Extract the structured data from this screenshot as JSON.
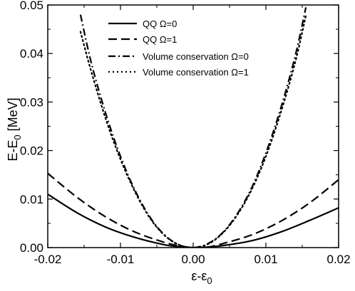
{
  "chart_data": {
    "type": "line",
    "xlabel": "ε-ε",
    "xlabel_sub": "0",
    "ylabel": "E-E",
    "ylabel_sub": "0",
    "ylabel_unit": " [MeV]",
    "xlim": [
      -0.02,
      0.02
    ],
    "ylim": [
      0.0,
      0.05
    ],
    "xticks": [
      -0.02,
      -0.01,
      0.0,
      0.01,
      0.02
    ],
    "xtick_labels": [
      "-0.02",
      "-0.01",
      "0.00",
      "0.01",
      "0.02"
    ],
    "yticks": [
      0.0,
      0.01,
      0.02,
      0.03,
      0.04,
      0.05
    ],
    "ytick_labels": [
      "0.00",
      "0.01",
      "0.02",
      "0.03",
      "0.04",
      "0.05"
    ],
    "grid": false,
    "legend_position": "top-left",
    "series": [
      {
        "name": "QQ Ω=0",
        "style": "solid",
        "x": [
          -0.02,
          -0.016,
          -0.012,
          -0.008,
          -0.004,
          -0.002,
          0.0,
          0.002,
          0.004,
          0.008,
          0.012,
          0.016,
          0.02
        ],
        "y": [
          0.011,
          0.0072,
          0.0042,
          0.0021,
          0.0006,
          0.0002,
          0.0,
          0.0001,
          0.0004,
          0.0014,
          0.0032,
          0.0056,
          0.0082
        ]
      },
      {
        "name": "QQ Ω=1",
        "style": "dashed",
        "x": [
          -0.02,
          -0.016,
          -0.012,
          -0.008,
          -0.004,
          -0.002,
          0.0,
          0.002,
          0.004,
          0.008,
          0.012,
          0.016,
          0.02
        ],
        "y": [
          0.0153,
          0.0104,
          0.0063,
          0.0032,
          0.0011,
          0.0004,
          0.0,
          0.0001,
          0.0008,
          0.0026,
          0.0054,
          0.0092,
          0.014
        ]
      },
      {
        "name": "Volume conservation  Ω=0",
        "style": "dashdot",
        "x": [
          -0.0155,
          -0.014,
          -0.012,
          -0.01,
          -0.008,
          -0.006,
          -0.004,
          -0.002,
          0.0,
          0.002,
          0.004,
          0.006,
          0.008,
          0.01,
          0.012,
          0.014,
          0.0155
        ],
        "y": [
          0.048,
          0.038,
          0.0275,
          0.0188,
          0.0118,
          0.0064,
          0.0027,
          0.0006,
          0.0,
          0.0008,
          0.003,
          0.0068,
          0.0122,
          0.0195,
          0.0285,
          0.0393,
          0.0495
        ]
      },
      {
        "name": "Volume conservation  Ω=1",
        "style": "dotted",
        "x": [
          -0.0155,
          -0.014,
          -0.012,
          -0.01,
          -0.008,
          -0.006,
          -0.004,
          -0.002,
          0.0,
          0.002,
          0.004,
          0.006,
          0.008,
          0.01,
          0.012,
          0.014,
          0.0155
        ],
        "y": [
          0.0445,
          0.0362,
          0.0264,
          0.0182,
          0.0115,
          0.0062,
          0.0026,
          0.0006,
          0.0,
          0.0007,
          0.0029,
          0.0066,
          0.0118,
          0.0188,
          0.0276,
          0.038,
          0.0478
        ]
      }
    ]
  }
}
